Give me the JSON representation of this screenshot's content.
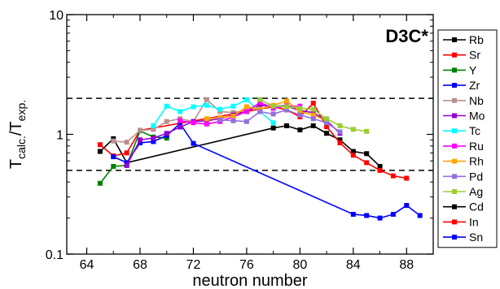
{
  "chart_data": {
    "type": "line",
    "annotation": "D3C*",
    "xlabel": "neutron number",
    "ylabel": {
      "base": "T",
      "sub_num": "calc.",
      "sep": "/",
      "sub_den": "exp."
    },
    "xlim": [
      62.5,
      90
    ],
    "ylim": [
      0.1,
      10
    ],
    "yscale": "log",
    "x_ticks": [
      "64",
      "68",
      "72",
      "76",
      "80",
      "84",
      "88"
    ],
    "y_ticks": [
      "0.1",
      "1",
      "10"
    ],
    "reference_lines": [
      2.0,
      0.5
    ],
    "legend_position": "right",
    "series": [
      {
        "name": "Rb",
        "color": "#000000",
        "x": [
          65,
          66,
          67,
          78,
          79,
          80,
          81,
          82,
          83,
          84,
          85,
          86
        ],
        "y": [
          0.72,
          0.92,
          0.58,
          1.13,
          1.18,
          1.09,
          1.18,
          1.02,
          0.9,
          0.72,
          0.69,
          0.54
        ]
      },
      {
        "name": "Sr",
        "color": "#ff0000",
        "x": [
          65,
          66,
          67,
          68,
          78,
          79,
          80,
          81,
          82,
          83,
          84,
          85,
          86,
          87,
          88
        ],
        "y": [
          0.82,
          0.66,
          0.7,
          1.08,
          1.7,
          1.6,
          1.4,
          1.82,
          1.16,
          0.85,
          0.67,
          0.58,
          0.5,
          0.45,
          0.43
        ]
      },
      {
        "name": "Y",
        "color": "#008000",
        "x": [
          65,
          66,
          67,
          68,
          69,
          70
        ],
        "y": [
          0.39,
          0.54,
          0.55,
          1.07,
          0.95,
          0.93
        ]
      },
      {
        "name": "Zr",
        "color": "#0000ff",
        "x": [
          66,
          67,
          68,
          69,
          70,
          71,
          72,
          84,
          85,
          86,
          87,
          88,
          89
        ],
        "y": [
          0.65,
          0.58,
          0.85,
          0.87,
          0.98,
          1.23,
          0.84,
          0.215,
          0.21,
          0.2,
          0.215,
          0.255,
          0.21
        ]
      },
      {
        "name": "Nb",
        "color": "#bc8f8f",
        "x": [
          66,
          67,
          68,
          69,
          70,
          71,
          72,
          73,
          74,
          75,
          76,
          77,
          78,
          79
        ],
        "y": [
          0.88,
          0.86,
          1.08,
          1.1,
          1.28,
          1.35,
          1.28,
          1.95,
          1.55,
          1.52,
          1.6,
          1.8,
          1.72,
          1.75
        ]
      },
      {
        "name": "Mo",
        "color": "#9400d3",
        "x": [
          67,
          68,
          69,
          70,
          71,
          72,
          73,
          74,
          75,
          76,
          77,
          78,
          79,
          80,
          81,
          82,
          83
        ],
        "y": [
          0.55,
          0.9,
          0.93,
          1.02,
          1.15,
          1.28,
          1.3,
          1.35,
          1.45,
          1.55,
          1.75,
          1.7,
          1.72,
          1.58,
          1.52,
          1.3,
          1.02
        ]
      },
      {
        "name": "Tc",
        "color": "#00ffff",
        "x": [
          69,
          70,
          71,
          72,
          73,
          74,
          75,
          76,
          77,
          78
        ],
        "y": [
          1.18,
          1.72,
          1.55,
          1.7,
          1.75,
          1.62,
          1.72,
          1.95,
          1.55,
          1.25
        ]
      },
      {
        "name": "Ru",
        "color": "#ff00ff",
        "x": [
          71,
          72,
          73,
          74,
          75,
          76,
          77,
          78,
          79,
          80
        ],
        "y": [
          1.3,
          1.25,
          1.22,
          1.28,
          1.4,
          1.55,
          1.85,
          1.65,
          1.72,
          1.72
        ]
      },
      {
        "name": "Rh",
        "color": "#ffa500",
        "x": [
          73,
          74,
          75,
          76,
          77,
          78,
          79,
          80,
          81,
          82
        ],
        "y": [
          1.35,
          1.38,
          1.42,
          1.7,
          1.62,
          1.75,
          1.9,
          1.55,
          1.45,
          1.3
        ]
      },
      {
        "name": "Pd",
        "color": "#9370db",
        "x": [
          74,
          75,
          76,
          77,
          78,
          79,
          80,
          81,
          82,
          83
        ],
        "y": [
          1.32,
          1.3,
          1.28,
          1.55,
          1.48,
          1.6,
          1.45,
          1.35,
          1.25,
          1.05
        ]
      },
      {
        "name": "Ag",
        "color": "#9acd32",
        "x": [
          77,
          78,
          79,
          80,
          81,
          82,
          83,
          84,
          85
        ],
        "y": [
          1.95,
          1.72,
          1.7,
          1.65,
          1.62,
          1.35,
          1.18,
          1.1,
          1.06
        ]
      },
      {
        "name": "Cd",
        "color": "#000000",
        "x": [],
        "y": []
      },
      {
        "name": "In",
        "color": "#ff0000",
        "x": [],
        "y": []
      },
      {
        "name": "Sn",
        "color": "#0000ff",
        "x": [],
        "y": []
      }
    ]
  }
}
